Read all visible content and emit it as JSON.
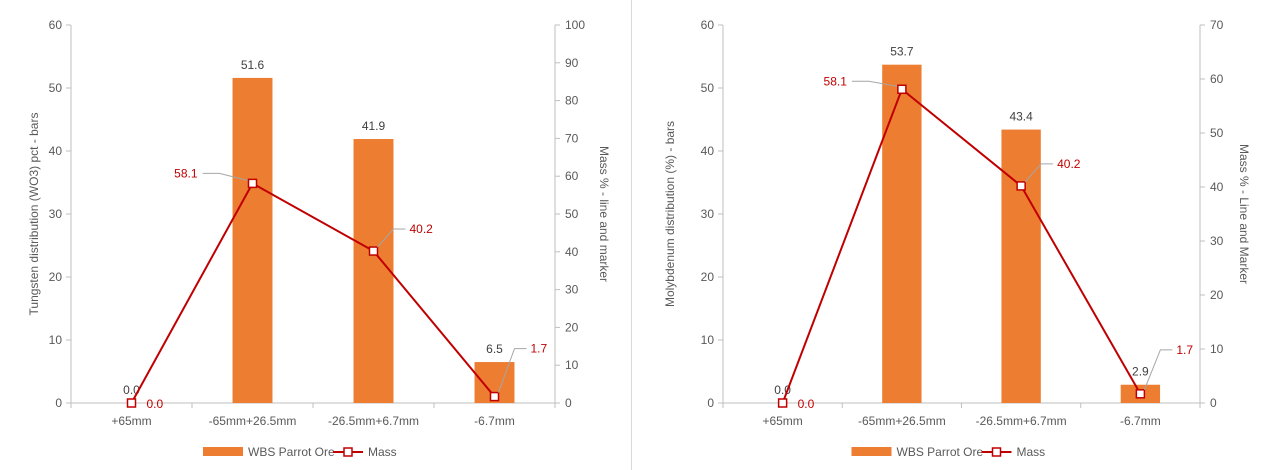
{
  "colors": {
    "bar": "#ED7D31",
    "line": "#C00000",
    "axis": "#BFBFBF",
    "leader": "#A6A6A6",
    "text": "#595959"
  },
  "chart_data": [
    {
      "type": "bar",
      "categories": [
        "+65mm",
        "-65mm+26.5mm",
        "-26.5mm+6.7mm",
        "-6.7mm"
      ],
      "series": [
        {
          "name": "WBS Parrot Ore",
          "type": "bar",
          "axis": "primary",
          "values": [
            0.0,
            51.6,
            41.9,
            6.5
          ],
          "labels": [
            "0.0",
            "51.6",
            "41.9",
            "6.5"
          ]
        },
        {
          "name": "Mass",
          "type": "line",
          "axis": "secondary",
          "values": [
            0.0,
            58.1,
            40.2,
            1.7
          ],
          "labels": [
            "0.0",
            "58.1",
            "40.2",
            "1.7"
          ]
        }
      ],
      "ylabel": "Tungsten distribution (WO3) pct - bars",
      "y2label": "Mass % - line and marker",
      "ylim": [
        0,
        60
      ],
      "y2lim": [
        0,
        100
      ],
      "yticks": [
        "0",
        "10",
        "20",
        "30",
        "40",
        "50",
        "60"
      ],
      "y2ticks": [
        "0",
        "10",
        "20",
        "30",
        "40",
        "50",
        "60",
        "70",
        "80",
        "90",
        "100"
      ],
      "legend_position": "bottom",
      "grid": false
    },
    {
      "type": "bar",
      "categories": [
        "+65mm",
        "-65mm+26.5mm",
        "-26.5mm+6.7mm",
        "-6.7mm"
      ],
      "series": [
        {
          "name": "WBS Parrot Ore",
          "type": "bar",
          "axis": "primary",
          "values": [
            0.0,
            53.7,
            43.4,
            2.9
          ],
          "labels": [
            "0.0",
            "53.7",
            "43.4",
            "2.9"
          ]
        },
        {
          "name": "Mass",
          "type": "line",
          "axis": "secondary",
          "values": [
            0.0,
            58.1,
            40.2,
            1.7
          ],
          "labels": [
            "0.0",
            "58.1",
            "40.2",
            "1.7"
          ]
        }
      ],
      "ylabel": "Molybdenum distribution (%) - bars",
      "y2label": "Mass % - Line and Marker",
      "ylim": [
        0,
        60
      ],
      "y2lim": [
        0,
        70
      ],
      "yticks": [
        "0",
        "10",
        "20",
        "30",
        "40",
        "50",
        "60"
      ],
      "y2ticks": [
        "0",
        "10",
        "20",
        "30",
        "40",
        "50",
        "60",
        "70"
      ],
      "legend_position": "bottom",
      "grid": false
    }
  ]
}
